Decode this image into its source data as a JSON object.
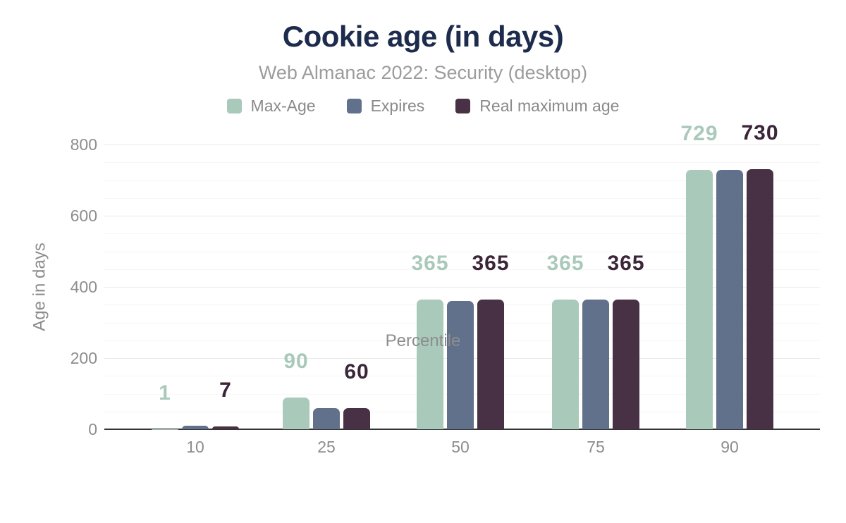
{
  "header": {
    "title": "Cookie age (in days)",
    "subtitle": "Web Almanac 2022: Security (desktop)"
  },
  "legend": [
    {
      "label": "Max-Age",
      "color": "#a9c9ba"
    },
    {
      "label": "Expires",
      "color": "#61718c"
    },
    {
      "label": "Real maximum age",
      "color": "#483145"
    }
  ],
  "colors": {
    "title": "#1d2b4d",
    "subtitle": "#9c9c9c",
    "tick_text": "#8d8d8d",
    "grid_major": "#e9e9e9",
    "grid_minor": "#f6f6f6",
    "axis_line": "#333333"
  },
  "chart_data": {
    "type": "bar",
    "title": "Cookie age (in days)",
    "subtitle": "Web Almanac 2022: Security (desktop)",
    "xlabel": "Percentile",
    "ylabel": "Age in days",
    "categories": [
      "10",
      "25",
      "50",
      "75",
      "90"
    ],
    "series": [
      {
        "name": "Max-Age",
        "color": "#a9c9ba",
        "values": [
          1,
          90,
          365,
          365,
          729
        ],
        "labels": [
          "1",
          "90",
          "365",
          "365",
          "729"
        ],
        "label_color": "#a9c9ba"
      },
      {
        "name": "Expires",
        "color": "#61718c",
        "values": [
          9,
          60,
          360,
          365,
          728
        ],
        "labels": null
      },
      {
        "name": "Real maximum age",
        "color": "#483145",
        "values": [
          7,
          60,
          365,
          365,
          730
        ],
        "labels": [
          "7",
          "60",
          "365",
          "365",
          "730"
        ],
        "label_color": "#3b2539"
      }
    ],
    "ylim": [
      0,
      800
    ],
    "yticks": [
      0,
      200,
      400,
      600,
      800
    ],
    "ytick_labels": [
      "0",
      "200",
      "400",
      "600",
      "800"
    ],
    "minor_grid_step": 50,
    "major_grid_step": 200,
    "grid": true,
    "legend_position": "top"
  }
}
